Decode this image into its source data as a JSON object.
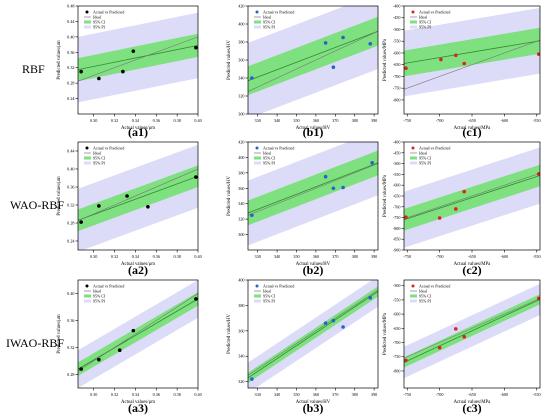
{
  "row_labels": [
    "RBF",
    "WAO-RBF",
    "IWAO-RBF"
  ],
  "legend": {
    "scatter": "Actual vs Predicted",
    "ideal": "Ideal",
    "ci": "95% CI",
    "pi": "95% PI"
  },
  "colors": {
    "pi_band": "#dcdcf8",
    "ci_band": "#7ee07e",
    "ideal": "#777777",
    "fit": "#2e8b2e"
  },
  "chart_data": [
    {
      "id": "a1",
      "label": "(a1)",
      "type": "scatter",
      "xlabel": "Actual values/μm",
      "ylabel": "Predicted values/μm",
      "xlim": [
        0.285,
        0.4
      ],
      "ylim": [
        0.2,
        0.48
      ],
      "xticks": [
        "0.30",
        "0.32",
        "0.34",
        "0.36",
        "0.38",
        "0.40"
      ],
      "xtickvals": [
        0.3,
        0.32,
        0.34,
        0.36,
        0.38,
        0.4
      ],
      "yticks": [
        "0.24",
        "0.28",
        "0.32",
        "0.36",
        "0.40",
        "0.44",
        "0.48"
      ],
      "ytickvals": [
        0.24,
        0.28,
        0.32,
        0.36,
        0.4,
        0.44,
        0.48
      ],
      "fit": [
        [
          0.285,
          0.315
        ],
        [
          0.4,
          0.378
        ]
      ],
      "ci_w": 0.03,
      "pi_w": 0.085,
      "points": [
        [
          0.288,
          0.31
        ],
        [
          0.305,
          0.292
        ],
        [
          0.328,
          0.31
        ],
        [
          0.338,
          0.363
        ],
        [
          0.398,
          0.372
        ]
      ],
      "marker": "#000000"
    },
    {
      "id": "b1",
      "label": "(b1)",
      "type": "scatter",
      "xlabel": "Actual values/HV",
      "ylabel": "Predicted values/HV",
      "xlim": [
        325,
        392
      ],
      "ylim": [
        300,
        420
      ],
      "xticks": [
        "330",
        "340",
        "350",
        "360",
        "370",
        "380",
        "390"
      ],
      "xtickvals": [
        330,
        340,
        350,
        360,
        370,
        380,
        390
      ],
      "yticks": [
        "300",
        "320",
        "340",
        "360",
        "380",
        "400",
        "420"
      ],
      "ytickvals": [
        300,
        320,
        340,
        360,
        380,
        400,
        420
      ],
      "fit": [
        [
          325,
          337
        ],
        [
          392,
          392
        ]
      ],
      "ci_w": 16,
      "pi_w": 42,
      "points": [
        [
          327,
          340
        ],
        [
          365,
          379
        ],
        [
          369,
          352
        ],
        [
          374,
          385
        ],
        [
          388,
          378
        ]
      ],
      "marker": "#2a5fd0"
    },
    {
      "id": "c1",
      "label": "(c1)",
      "type": "scatter",
      "xlabel": "Actual values/MPa",
      "ylabel": "Predicted values/MPa",
      "xlim": [
        -755,
        -545
      ],
      "ylim": [
        -860,
        -400
      ],
      "xticks": [
        "-750",
        "-700",
        "-650",
        "-600",
        "-550"
      ],
      "xtickvals": [
        -750,
        -700,
        -650,
        -600,
        -550
      ],
      "yticks": [
        "-800",
        "-750",
        "-700",
        "-650",
        "-600",
        "-550",
        "-500",
        "-450",
        "-400"
      ],
      "ytickvals": [
        -800,
        -750,
        -700,
        -650,
        -600,
        -550,
        -500,
        -450,
        -400
      ],
      "fit": [
        [
          -755,
          -645
        ],
        [
          -545,
          -548
        ]
      ],
      "ci_w": 55,
      "pi_w": 140,
      "points": [
        [
          -752,
          -665
        ],
        [
          -698,
          -628
        ],
        [
          -675,
          -610
        ],
        [
          -662,
          -645
        ],
        [
          -547,
          -605
        ]
      ],
      "marker": "#dd2222"
    },
    {
      "id": "a2",
      "label": "(a2)",
      "type": "scatter",
      "xlabel": "Actual values/μm",
      "ylabel": "Predicted values/μm",
      "xlim": [
        0.285,
        0.4
      ],
      "ylim": [
        0.22,
        0.46
      ],
      "xticks": [
        "0.30",
        "0.32",
        "0.34",
        "0.36",
        "0.38",
        "0.40"
      ],
      "xtickvals": [
        0.3,
        0.32,
        0.34,
        0.36,
        0.38,
        0.4
      ],
      "yticks": [
        "0.24",
        "0.28",
        "0.32",
        "0.36",
        "0.40",
        "0.44"
      ],
      "ytickvals": [
        0.24,
        0.28,
        0.32,
        0.36,
        0.4,
        0.44
      ],
      "fit": [
        [
          0.285,
          0.286
        ],
        [
          0.4,
          0.384
        ]
      ],
      "ci_w": 0.024,
      "pi_w": 0.07,
      "points": [
        [
          0.288,
          0.282
        ],
        [
          0.305,
          0.318
        ],
        [
          0.332,
          0.34
        ],
        [
          0.352,
          0.316
        ],
        [
          0.398,
          0.382
        ]
      ],
      "marker": "#000000"
    },
    {
      "id": "b2",
      "label": "(b2)",
      "type": "scatter",
      "xlabel": "Actual values/HV",
      "ylabel": "Predicted values/HV",
      "xlim": [
        325,
        392
      ],
      "ylim": [
        280,
        420
      ],
      "xticks": [
        "330",
        "340",
        "350",
        "360",
        "370",
        "380",
        "390"
      ],
      "xtickvals": [
        330,
        340,
        350,
        360,
        370,
        380,
        390
      ],
      "yticks": [
        "300",
        "320",
        "340",
        "360",
        "380",
        "400",
        "420"
      ],
      "ytickvals": [
        300,
        320,
        340,
        360,
        380,
        400,
        420
      ],
      "fit": [
        [
          325,
          328
        ],
        [
          392,
          393
        ]
      ],
      "ci_w": 16,
      "pi_w": 42,
      "points": [
        [
          327,
          325
        ],
        [
          365,
          375
        ],
        [
          369,
          360
        ],
        [
          374,
          361
        ],
        [
          389,
          393
        ]
      ],
      "marker": "#2a5fd0"
    },
    {
      "id": "c2",
      "label": "(c2)",
      "type": "scatter",
      "xlabel": "Actual values/MPa",
      "ylabel": "Predicted values/MPa",
      "xlim": [
        -755,
        -545
      ],
      "ylim": [
        -900,
        -400
      ],
      "xticks": [
        "-750",
        "-700",
        "-650",
        "-600",
        "-550"
      ],
      "xtickvals": [
        -750,
        -700,
        -650,
        -600,
        -550
      ],
      "yticks": [
        "-900",
        "-850",
        "-800",
        "-750",
        "-700",
        "-650",
        "-600",
        "-550",
        "-500",
        "-450",
        "-400"
      ],
      "ytickvals": [
        -900,
        -850,
        -800,
        -750,
        -700,
        -650,
        -600,
        -550,
        -500,
        -450,
        -400
      ],
      "fit": [
        [
          -755,
          -760
        ],
        [
          -545,
          -555
        ]
      ],
      "ci_w": 50,
      "pi_w": 130,
      "points": [
        [
          -752,
          -748
        ],
        [
          -700,
          -752
        ],
        [
          -675,
          -710
        ],
        [
          -662,
          -630
        ],
        [
          -547,
          -548
        ]
      ],
      "marker": "#dd2222"
    },
    {
      "id": "a3",
      "label": "(a3)",
      "type": "scatter",
      "xlabel": "Actual values/μm",
      "ylabel": "Predicted values/μm",
      "xlim": [
        0.285,
        0.4
      ],
      "ylim": [
        0.26,
        0.42
      ],
      "xticks": [
        "0.30",
        "0.32",
        "0.34",
        "0.36",
        "0.38",
        "0.40"
      ],
      "xtickvals": [
        0.3,
        0.32,
        0.34,
        0.36,
        0.38,
        0.4
      ],
      "yticks": [
        "0.28",
        "0.32",
        "0.36",
        "0.40"
      ],
      "ytickvals": [
        0.28,
        0.32,
        0.36,
        0.4
      ],
      "fit": [
        [
          0.285,
          0.288
        ],
        [
          0.4,
          0.392
        ]
      ],
      "ci_w": 0.01,
      "pi_w": 0.028,
      "points": [
        [
          0.288,
          0.288
        ],
        [
          0.305,
          0.302
        ],
        [
          0.325,
          0.316
        ],
        [
          0.338,
          0.345
        ],
        [
          0.398,
          0.392
        ]
      ],
      "marker": "#000000"
    },
    {
      "id": "b3",
      "label": "(b3)",
      "type": "scatter",
      "xlabel": "Actual values/HV",
      "ylabel": "Predicted values/HV",
      "xlim": [
        325,
        392
      ],
      "ylim": [
        315,
        400
      ],
      "xticks": [
        "330",
        "340",
        "350",
        "360",
        "370",
        "380",
        "390"
      ],
      "xtickvals": [
        330,
        340,
        350,
        360,
        370,
        380,
        390
      ],
      "yticks": [
        "320",
        "340",
        "360",
        "380",
        "400"
      ],
      "ytickvals": [
        320,
        340,
        360,
        380,
        400
      ],
      "fit": [
        [
          325,
          323
        ],
        [
          392,
          391
        ]
      ],
      "ci_w": 4,
      "pi_w": 12,
      "points": [
        [
          327,
          322
        ],
        [
          365,
          366
        ],
        [
          369,
          368
        ],
        [
          374,
          363
        ],
        [
          388,
          386
        ]
      ],
      "marker": "#2a5fd0"
    },
    {
      "id": "c3",
      "label": "(c3)",
      "type": "scatter",
      "xlabel": "Actual values/MPa",
      "ylabel": "Predicted values/MPa",
      "xlim": [
        -755,
        -545
      ],
      "ylim": [
        -860,
        -480
      ],
      "xticks": [
        "-750",
        "-700",
        "-650",
        "-600",
        "-550"
      ],
      "xtickvals": [
        -750,
        -700,
        -650,
        -600,
        -550
      ],
      "yticks": [
        "-800",
        "-750",
        "-700",
        "-650",
        "-600",
        "-550",
        "-500"
      ],
      "ytickvals": [
        -800,
        -750,
        -700,
        -650,
        -600,
        -550,
        -500
      ],
      "fit": [
        [
          -755,
          -770
        ],
        [
          -545,
          -548
        ]
      ],
      "ci_w": 18,
      "pi_w": 55,
      "points": [
        [
          -752,
          -763
        ],
        [
          -700,
          -718
        ],
        [
          -675,
          -652
        ],
        [
          -662,
          -680
        ],
        [
          -547,
          -545
        ]
      ],
      "marker": "#dd2222"
    }
  ]
}
